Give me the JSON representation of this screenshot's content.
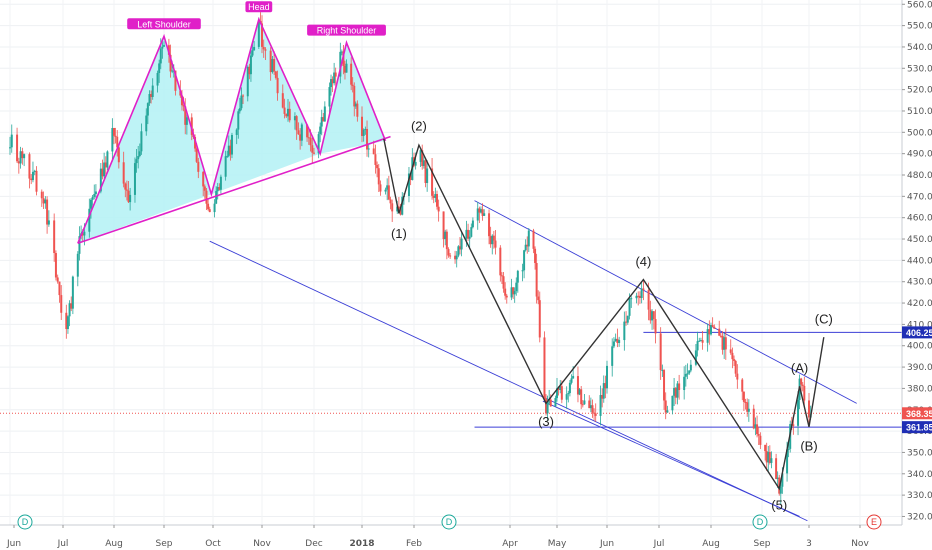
{
  "chart_data": {
    "type": "candlestick",
    "title": "",
    "x_axis": {
      "labels": [
        "Jun",
        "Jul",
        "Aug",
        "Sep",
        "Oct",
        "Nov",
        "Dec",
        "2018",
        "Feb",
        "Apr",
        "May",
        "Jun",
        "Jul",
        "Aug",
        "Sep",
        "3",
        "Nov"
      ]
    },
    "y_axis": {
      "ticks": [
        320,
        330,
        340,
        350,
        360,
        370,
        380,
        390,
        400,
        410,
        420,
        430,
        440,
        450,
        460,
        470,
        480,
        490,
        500,
        510,
        520,
        530,
        540,
        550,
        560
      ],
      "tick_labels": [
        "320.00",
        "330.00",
        "340.00",
        "350.00",
        "360.00",
        "370.00",
        "380.00",
        "390.00",
        "400.00",
        "410.00",
        "420.00",
        "430.00",
        "440.00",
        "450.00",
        "460.00",
        "470.00",
        "480.00",
        "490.00",
        "500.00",
        "510.00",
        "520.00",
        "530.00",
        "540.00",
        "550.00",
        "560.00"
      ],
      "range": [
        316,
        562
      ]
    },
    "price_key_points": [
      {
        "date": "2017-06-01",
        "price": 497
      },
      {
        "date": "2017-06-20",
        "price": 470
      },
      {
        "date": "2017-07-03",
        "price": 403
      },
      {
        "date": "2017-07-10",
        "price": 447
      },
      {
        "date": "2017-08-01",
        "price": 500
      },
      {
        "date": "2017-08-10",
        "price": 470
      },
      {
        "date": "2017-09-01",
        "price": 543
      },
      {
        "date": "2017-09-15",
        "price": 505
      },
      {
        "date": "2017-09-30",
        "price": 462
      },
      {
        "date": "2017-10-15",
        "price": 500
      },
      {
        "date": "2017-10-30",
        "price": 550
      },
      {
        "date": "2017-11-15",
        "price": 510
      },
      {
        "date": "2017-12-01",
        "price": 490
      },
      {
        "date": "2017-12-18",
        "price": 538
      },
      {
        "date": "2018-01-10",
        "price": 480
      },
      {
        "date": "2018-01-23",
        "price": 462
      },
      {
        "date": "2018-02-03",
        "price": 493
      },
      {
        "date": "2018-02-25",
        "price": 440
      },
      {
        "date": "2018-03-15",
        "price": 465
      },
      {
        "date": "2018-04-01",
        "price": 420
      },
      {
        "date": "2018-04-15",
        "price": 455
      },
      {
        "date": "2018-04-24",
        "price": 370
      },
      {
        "date": "2018-05-10",
        "price": 383
      },
      {
        "date": "2018-05-25",
        "price": 368
      },
      {
        "date": "2018-06-10",
        "price": 412
      },
      {
        "date": "2018-06-22",
        "price": 428
      },
      {
        "date": "2018-06-30",
        "price": 405
      },
      {
        "date": "2018-07-05",
        "price": 370
      },
      {
        "date": "2018-07-25",
        "price": 400
      },
      {
        "date": "2018-08-05",
        "price": 408
      },
      {
        "date": "2018-08-20",
        "price": 380
      },
      {
        "date": "2018-09-01",
        "price": 355
      },
      {
        "date": "2018-09-12",
        "price": 335
      },
      {
        "date": "2018-09-25",
        "price": 380
      },
      {
        "date": "2018-10-02",
        "price": 368
      }
    ],
    "price_labels": [
      {
        "label": "406.25",
        "value": 406.25,
        "color": "#1f2fb5"
      },
      {
        "label": "368.35",
        "value": 368.35,
        "color": "#ef5350"
      },
      {
        "label": "361.85",
        "value": 361.85,
        "color": "#1f2fb5"
      }
    ],
    "horizontal_lines": [
      {
        "value": 406.25,
        "color": "#3b3fd6",
        "style": "solid"
      },
      {
        "value": 368.35,
        "color": "#ef5350",
        "style": "dotted"
      },
      {
        "value": 361.85,
        "color": "#3b3fd6",
        "style": "solid"
      }
    ],
    "patterns": [
      {
        "name": "Head and Shoulders",
        "labels": [
          "Left Shoulder",
          "Head",
          "Right Shoulder"
        ],
        "color": "#e020c8",
        "fill": "#b3f1f5"
      }
    ],
    "elliott_wave_labels": [
      "(1)",
      "(2)",
      "(3)",
      "(4)",
      "(5)",
      "(A)",
      "(B)",
      "(C)"
    ],
    "event_markers": [
      {
        "symbol": "D",
        "color": "#1aa89a"
      },
      {
        "symbol": "D",
        "color": "#1aa89a"
      },
      {
        "symbol": "D",
        "color": "#1aa89a"
      },
      {
        "symbol": "E",
        "color": "#e53935"
      }
    ],
    "colors": {
      "up": "#26a69a",
      "down": "#ef5350",
      "channel": "#3b3fd6",
      "wave": "#333333",
      "pattern": "#e020c8",
      "pattern_fill": "#b3f1f5"
    }
  }
}
